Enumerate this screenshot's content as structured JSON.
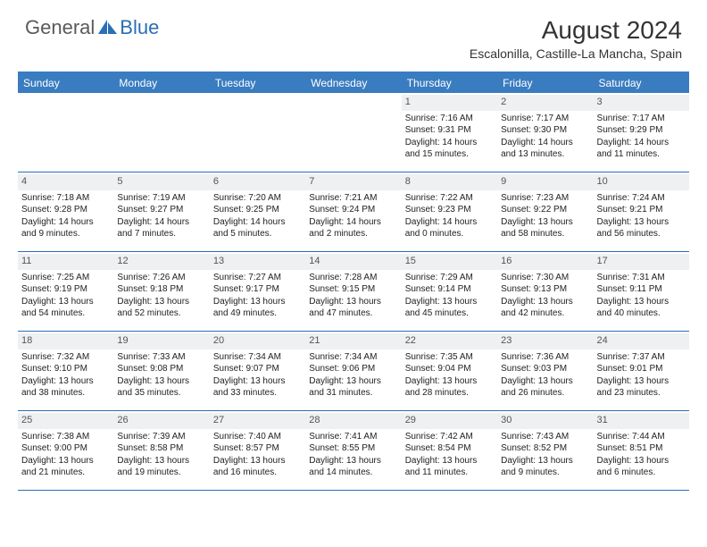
{
  "brand": {
    "general": "General",
    "blue": "Blue"
  },
  "title": "August 2024",
  "location": "Escalonilla, Castille-La Mancha, Spain",
  "colors": {
    "header_bg": "#3a7cc0",
    "border": "#2a6fb5",
    "daynum_bg": "#eef0f2",
    "text": "#222222"
  },
  "weekdays": [
    "Sunday",
    "Monday",
    "Tuesday",
    "Wednesday",
    "Thursday",
    "Friday",
    "Saturday"
  ],
  "weeks": [
    [
      {
        "n": "",
        "empty": true
      },
      {
        "n": "",
        "empty": true
      },
      {
        "n": "",
        "empty": true
      },
      {
        "n": "",
        "empty": true
      },
      {
        "n": "1",
        "sr": "Sunrise: 7:16 AM",
        "ss": "Sunset: 9:31 PM",
        "dl1": "Daylight: 14 hours",
        "dl2": "and 15 minutes."
      },
      {
        "n": "2",
        "sr": "Sunrise: 7:17 AM",
        "ss": "Sunset: 9:30 PM",
        "dl1": "Daylight: 14 hours",
        "dl2": "and 13 minutes."
      },
      {
        "n": "3",
        "sr": "Sunrise: 7:17 AM",
        "ss": "Sunset: 9:29 PM",
        "dl1": "Daylight: 14 hours",
        "dl2": "and 11 minutes."
      }
    ],
    [
      {
        "n": "4",
        "sr": "Sunrise: 7:18 AM",
        "ss": "Sunset: 9:28 PM",
        "dl1": "Daylight: 14 hours",
        "dl2": "and 9 minutes."
      },
      {
        "n": "5",
        "sr": "Sunrise: 7:19 AM",
        "ss": "Sunset: 9:27 PM",
        "dl1": "Daylight: 14 hours",
        "dl2": "and 7 minutes."
      },
      {
        "n": "6",
        "sr": "Sunrise: 7:20 AM",
        "ss": "Sunset: 9:25 PM",
        "dl1": "Daylight: 14 hours",
        "dl2": "and 5 minutes."
      },
      {
        "n": "7",
        "sr": "Sunrise: 7:21 AM",
        "ss": "Sunset: 9:24 PM",
        "dl1": "Daylight: 14 hours",
        "dl2": "and 2 minutes."
      },
      {
        "n": "8",
        "sr": "Sunrise: 7:22 AM",
        "ss": "Sunset: 9:23 PM",
        "dl1": "Daylight: 14 hours",
        "dl2": "and 0 minutes."
      },
      {
        "n": "9",
        "sr": "Sunrise: 7:23 AM",
        "ss": "Sunset: 9:22 PM",
        "dl1": "Daylight: 13 hours",
        "dl2": "and 58 minutes."
      },
      {
        "n": "10",
        "sr": "Sunrise: 7:24 AM",
        "ss": "Sunset: 9:21 PM",
        "dl1": "Daylight: 13 hours",
        "dl2": "and 56 minutes."
      }
    ],
    [
      {
        "n": "11",
        "sr": "Sunrise: 7:25 AM",
        "ss": "Sunset: 9:19 PM",
        "dl1": "Daylight: 13 hours",
        "dl2": "and 54 minutes."
      },
      {
        "n": "12",
        "sr": "Sunrise: 7:26 AM",
        "ss": "Sunset: 9:18 PM",
        "dl1": "Daylight: 13 hours",
        "dl2": "and 52 minutes."
      },
      {
        "n": "13",
        "sr": "Sunrise: 7:27 AM",
        "ss": "Sunset: 9:17 PM",
        "dl1": "Daylight: 13 hours",
        "dl2": "and 49 minutes."
      },
      {
        "n": "14",
        "sr": "Sunrise: 7:28 AM",
        "ss": "Sunset: 9:15 PM",
        "dl1": "Daylight: 13 hours",
        "dl2": "and 47 minutes."
      },
      {
        "n": "15",
        "sr": "Sunrise: 7:29 AM",
        "ss": "Sunset: 9:14 PM",
        "dl1": "Daylight: 13 hours",
        "dl2": "and 45 minutes."
      },
      {
        "n": "16",
        "sr": "Sunrise: 7:30 AM",
        "ss": "Sunset: 9:13 PM",
        "dl1": "Daylight: 13 hours",
        "dl2": "and 42 minutes."
      },
      {
        "n": "17",
        "sr": "Sunrise: 7:31 AM",
        "ss": "Sunset: 9:11 PM",
        "dl1": "Daylight: 13 hours",
        "dl2": "and 40 minutes."
      }
    ],
    [
      {
        "n": "18",
        "sr": "Sunrise: 7:32 AM",
        "ss": "Sunset: 9:10 PM",
        "dl1": "Daylight: 13 hours",
        "dl2": "and 38 minutes."
      },
      {
        "n": "19",
        "sr": "Sunrise: 7:33 AM",
        "ss": "Sunset: 9:08 PM",
        "dl1": "Daylight: 13 hours",
        "dl2": "and 35 minutes."
      },
      {
        "n": "20",
        "sr": "Sunrise: 7:34 AM",
        "ss": "Sunset: 9:07 PM",
        "dl1": "Daylight: 13 hours",
        "dl2": "and 33 minutes."
      },
      {
        "n": "21",
        "sr": "Sunrise: 7:34 AM",
        "ss": "Sunset: 9:06 PM",
        "dl1": "Daylight: 13 hours",
        "dl2": "and 31 minutes."
      },
      {
        "n": "22",
        "sr": "Sunrise: 7:35 AM",
        "ss": "Sunset: 9:04 PM",
        "dl1": "Daylight: 13 hours",
        "dl2": "and 28 minutes."
      },
      {
        "n": "23",
        "sr": "Sunrise: 7:36 AM",
        "ss": "Sunset: 9:03 PM",
        "dl1": "Daylight: 13 hours",
        "dl2": "and 26 minutes."
      },
      {
        "n": "24",
        "sr": "Sunrise: 7:37 AM",
        "ss": "Sunset: 9:01 PM",
        "dl1": "Daylight: 13 hours",
        "dl2": "and 23 minutes."
      }
    ],
    [
      {
        "n": "25",
        "sr": "Sunrise: 7:38 AM",
        "ss": "Sunset: 9:00 PM",
        "dl1": "Daylight: 13 hours",
        "dl2": "and 21 minutes."
      },
      {
        "n": "26",
        "sr": "Sunrise: 7:39 AM",
        "ss": "Sunset: 8:58 PM",
        "dl1": "Daylight: 13 hours",
        "dl2": "and 19 minutes."
      },
      {
        "n": "27",
        "sr": "Sunrise: 7:40 AM",
        "ss": "Sunset: 8:57 PM",
        "dl1": "Daylight: 13 hours",
        "dl2": "and 16 minutes."
      },
      {
        "n": "28",
        "sr": "Sunrise: 7:41 AM",
        "ss": "Sunset: 8:55 PM",
        "dl1": "Daylight: 13 hours",
        "dl2": "and 14 minutes."
      },
      {
        "n": "29",
        "sr": "Sunrise: 7:42 AM",
        "ss": "Sunset: 8:54 PM",
        "dl1": "Daylight: 13 hours",
        "dl2": "and 11 minutes."
      },
      {
        "n": "30",
        "sr": "Sunrise: 7:43 AM",
        "ss": "Sunset: 8:52 PM",
        "dl1": "Daylight: 13 hours",
        "dl2": "and 9 minutes."
      },
      {
        "n": "31",
        "sr": "Sunrise: 7:44 AM",
        "ss": "Sunset: 8:51 PM",
        "dl1": "Daylight: 13 hours",
        "dl2": "and 6 minutes."
      }
    ]
  ]
}
